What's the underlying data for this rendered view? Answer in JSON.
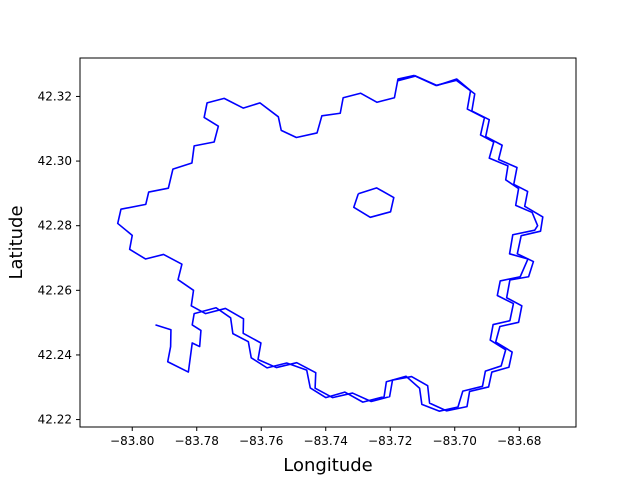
{
  "chart_data": {
    "type": "line",
    "title": "",
    "xlabel": "Longitude",
    "ylabel": "Latitude",
    "xlim": [
      -83.8162,
      -83.6624
    ],
    "ylim": [
      42.2177,
      42.3319
    ],
    "grid": false,
    "x_ticks": [
      "−83.80",
      "−83.78",
      "−83.76",
      "−83.74",
      "−83.72",
      "−83.70",
      "−83.68"
    ],
    "x_tick_values": [
      -83.8,
      -83.78,
      -83.76,
      -83.74,
      -83.72,
      -83.7,
      -83.68
    ],
    "y_ticks": [
      "42.22",
      "42.24",
      "42.26",
      "42.28",
      "42.30",
      "42.32"
    ],
    "y_tick_values": [
      42.22,
      42.24,
      42.26,
      42.28,
      42.3,
      42.32
    ],
    "series": [
      {
        "color": "#0000ff",
        "points": [
          [
            -83.7125,
            42.3265
          ],
          [
            -83.7055,
            42.3234
          ],
          [
            -83.6994,
            42.3254
          ],
          [
            -83.6951,
            42.3218
          ],
          [
            -83.6961,
            42.3161
          ],
          [
            -83.6908,
            42.3134
          ],
          [
            -83.692,
            42.3081
          ],
          [
            -83.6879,
            42.3059
          ],
          [
            -83.6893,
            42.3009
          ],
          [
            -83.6835,
            42.2985
          ],
          [
            -83.6842,
            42.2942
          ],
          [
            -83.6802,
            42.2915
          ],
          [
            -83.6811,
            42.2863
          ],
          [
            -83.676,
            42.2841
          ],
          [
            -83.6743,
            42.28
          ],
          [
            -83.6752,
            42.2786
          ],
          [
            -83.682,
            42.2772
          ],
          [
            -83.683,
            42.2713
          ],
          [
            -83.6773,
            42.2697
          ],
          [
            -83.6797,
            42.2642
          ],
          [
            -83.6859,
            42.2629
          ],
          [
            -83.6868,
            42.2584
          ],
          [
            -83.6818,
            42.2559
          ],
          [
            -83.6829,
            42.2506
          ],
          [
            -83.6881,
            42.2494
          ],
          [
            -83.689,
            42.2446
          ],
          [
            -83.6842,
            42.2416
          ],
          [
            -83.6856,
            42.2366
          ],
          [
            -83.6905,
            42.235
          ],
          [
            -83.6914,
            42.2303
          ],
          [
            -83.6975,
            42.2288
          ],
          [
            -83.699,
            42.2239
          ],
          [
            -83.7048,
            42.2226
          ],
          [
            -83.7102,
            42.2247
          ],
          [
            -83.7109,
            42.2297
          ],
          [
            -83.7151,
            42.2334
          ],
          [
            -83.7212,
            42.2317
          ],
          [
            -83.7219,
            42.2271
          ],
          [
            -83.7285,
            42.2254
          ],
          [
            -83.7341,
            42.2285
          ],
          [
            -83.74,
            42.2268
          ],
          [
            -83.7448,
            42.2298
          ],
          [
            -83.7459,
            42.2353
          ],
          [
            -83.7521,
            42.2375
          ],
          [
            -83.7582,
            42.236
          ],
          [
            -83.7631,
            42.2391
          ],
          [
            -83.764,
            42.2441
          ],
          [
            -83.7688,
            42.2466
          ],
          [
            -83.7695,
            42.2515
          ],
          [
            -83.774,
            42.2546
          ],
          [
            -83.7808,
            42.2528
          ],
          [
            -83.7814,
            42.2493
          ],
          [
            -83.7787,
            42.2476
          ],
          [
            -83.7791,
            42.2426
          ],
          [
            -83.7814,
            42.2437
          ],
          [
            -83.7826,
            42.2347
          ],
          [
            -83.789,
            42.2379
          ],
          [
            -83.7881,
            42.2426
          ],
          [
            -83.788,
            42.2478
          ],
          [
            -83.7928,
            42.2493
          ]
        ]
      },
      {
        "color": "#0000ff",
        "points": [
          [
            -83.7125,
            42.3265
          ],
          [
            -83.7176,
            42.3254
          ],
          [
            -83.7187,
            42.3196
          ],
          [
            -83.7241,
            42.3182
          ],
          [
            -83.7292,
            42.321
          ],
          [
            -83.7346,
            42.3196
          ],
          [
            -83.7355,
            42.3148
          ],
          [
            -83.7412,
            42.314
          ],
          [
            -83.7427,
            42.3087
          ],
          [
            -83.7491,
            42.3073
          ],
          [
            -83.7538,
            42.3095
          ],
          [
            -83.7547,
            42.3137
          ],
          [
            -83.7604,
            42.318
          ],
          [
            -83.7656,
            42.3164
          ],
          [
            -83.7715,
            42.3194
          ],
          [
            -83.7768,
            42.318
          ],
          [
            -83.7777,
            42.3135
          ],
          [
            -83.7733,
            42.3108
          ],
          [
            -83.7746,
            42.3059
          ],
          [
            -83.7808,
            42.3047
          ],
          [
            -83.7815,
            42.2994
          ],
          [
            -83.7874,
            42.2975
          ],
          [
            -83.7888,
            42.2916
          ],
          [
            -83.7949,
            42.2904
          ],
          [
            -83.7958,
            42.2866
          ],
          [
            -83.8035,
            42.2851
          ],
          [
            -83.8045,
            42.2807
          ],
          [
            -83.8,
            42.277
          ],
          [
            -83.8008,
            42.2727
          ],
          [
            -83.7959,
            42.2697
          ],
          [
            -83.7903,
            42.2711
          ],
          [
            -83.7846,
            42.2681
          ],
          [
            -83.7858,
            42.2633
          ],
          [
            -83.781,
            42.26
          ],
          [
            -83.7817,
            42.2552
          ],
          [
            -83.7773,
            42.2528
          ],
          [
            -83.7711,
            42.2544
          ],
          [
            -83.7655,
            42.2512
          ],
          [
            -83.7656,
            42.2467
          ],
          [
            -83.7601,
            42.2437
          ],
          [
            -83.761,
            42.2386
          ],
          [
            -83.7553,
            42.2361
          ],
          [
            -83.749,
            42.2376
          ],
          [
            -83.7431,
            42.2345
          ],
          [
            -83.7433,
            42.2297
          ],
          [
            -83.7379,
            42.2268
          ],
          [
            -83.7317,
            42.2282
          ],
          [
            -83.7259,
            42.2256
          ],
          [
            -83.7202,
            42.2271
          ],
          [
            -83.7193,
            42.2322
          ],
          [
            -83.7134,
            42.2333
          ],
          [
            -83.7084,
            42.2305
          ],
          [
            -83.7078,
            42.2251
          ],
          [
            -83.7025,
            42.2227
          ],
          [
            -83.6962,
            42.224
          ],
          [
            -83.6954,
            42.2287
          ],
          [
            -83.6895,
            42.2301
          ],
          [
            -83.6885,
            42.2347
          ],
          [
            -83.6832,
            42.2362
          ],
          [
            -83.6822,
            42.2409
          ],
          [
            -83.6873,
            42.244
          ],
          [
            -83.686,
            42.2488
          ],
          [
            -83.6802,
            42.2501
          ],
          [
            -83.6792,
            42.2552
          ],
          [
            -83.6839,
            42.2577
          ],
          [
            -83.6829,
            42.2632
          ],
          [
            -83.6771,
            42.2642
          ],
          [
            -83.6756,
            42.2689
          ],
          [
            -83.6806,
            42.2713
          ],
          [
            -83.6794,
            42.2769
          ],
          [
            -83.6734,
            42.2783
          ],
          [
            -83.6727,
            42.2827
          ],
          [
            -83.6783,
            42.286
          ],
          [
            -83.6774,
            42.2906
          ],
          [
            -83.6817,
            42.2928
          ],
          [
            -83.6807,
            42.298
          ],
          [
            -83.6864,
            42.3005
          ],
          [
            -83.6853,
            42.3049
          ],
          [
            -83.6904,
            42.3076
          ],
          [
            -83.6893,
            42.3128
          ],
          [
            -83.6947,
            42.3155
          ],
          [
            -83.6938,
            42.3208
          ],
          [
            -83.6995,
            42.325
          ],
          [
            -83.7058,
            42.3234
          ],
          [
            -83.7122,
            42.3263
          ],
          [
            -83.7179,
            42.3248
          ]
        ]
      },
      {
        "color": "#0000ff",
        "points": [
          [
            -83.7299,
            42.2899
          ],
          [
            -83.7242,
            42.2917
          ],
          [
            -83.7189,
            42.2887
          ],
          [
            -83.7199,
            42.2843
          ],
          [
            -83.7262,
            42.2826
          ],
          [
            -83.7313,
            42.2857
          ],
          [
            -83.7299,
            42.2899
          ]
        ]
      }
    ]
  }
}
